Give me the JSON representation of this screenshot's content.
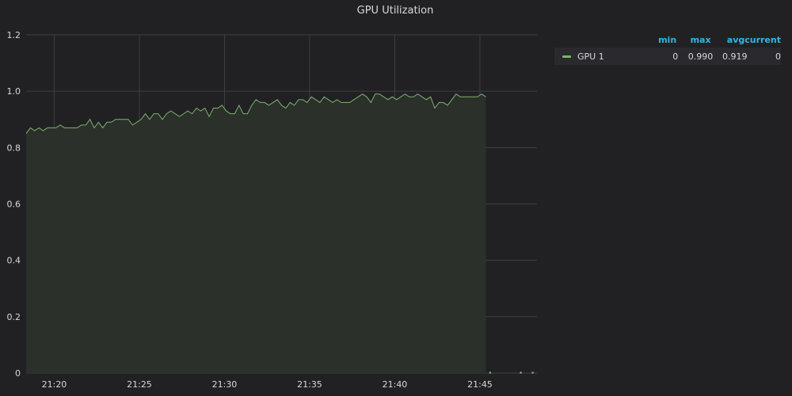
{
  "panel": {
    "title": "GPU Utilization"
  },
  "colors": {
    "series": "#7eb26d",
    "fill": "#2b302b",
    "header": "#33b5e5",
    "grid": "#3f3f43",
    "background": "#212124"
  },
  "legend": {
    "headers": {
      "min": "min",
      "max": "max",
      "avg": "avg",
      "current": "current"
    },
    "rows": [
      {
        "name": "GPU 1",
        "min": "0",
        "max": "0.990",
        "avg": "0.919",
        "current": "0"
      }
    ]
  },
  "chart_data": {
    "type": "area",
    "title": "GPU Utilization",
    "xlabel": "",
    "ylabel": "",
    "x_ticks": [
      "21:20",
      "21:25",
      "21:30",
      "21:35",
      "21:40",
      "21:45"
    ],
    "x_tick_minutes": [
      20,
      25,
      30,
      35,
      40,
      45
    ],
    "xlim_minutes": [
      18.35,
      48.35
    ],
    "y_ticks": [
      "0",
      "0.2",
      "0.4",
      "0.6",
      "0.8",
      "1.0",
      "1.2"
    ],
    "ylim": [
      0,
      1.2
    ],
    "grid": true,
    "legend_position": "right",
    "series": [
      {
        "name": "GPU 1",
        "x_minutes": [
          18.35,
          18.6,
          18.85,
          19.1,
          19.35,
          19.6,
          19.85,
          20.1,
          20.35,
          20.6,
          20.85,
          21.1,
          21.35,
          21.6,
          21.85,
          22.1,
          22.35,
          22.6,
          22.85,
          23.1,
          23.35,
          23.6,
          23.85,
          24.1,
          24.35,
          24.6,
          24.85,
          25.1,
          25.35,
          25.6,
          25.85,
          26.1,
          26.35,
          26.6,
          26.85,
          27.1,
          27.35,
          27.6,
          27.85,
          28.1,
          28.35,
          28.6,
          28.85,
          29.1,
          29.35,
          29.6,
          29.85,
          30.1,
          30.35,
          30.6,
          30.85,
          31.1,
          31.35,
          31.6,
          31.85,
          32.1,
          32.35,
          32.6,
          32.85,
          33.1,
          33.35,
          33.6,
          33.85,
          34.1,
          34.35,
          34.6,
          34.85,
          35.1,
          35.35,
          35.6,
          35.85,
          36.1,
          36.35,
          36.6,
          36.85,
          37.1,
          37.35,
          37.6,
          37.85,
          38.1,
          38.35,
          38.6,
          38.85,
          39.1,
          39.35,
          39.6,
          39.85,
          40.1,
          40.35,
          40.6,
          40.85,
          41.1,
          41.35,
          41.6,
          41.85,
          42.1,
          42.35,
          42.6,
          42.85,
          43.1,
          43.35,
          43.6,
          43.85,
          44.1,
          44.35,
          44.6,
          44.85,
          45.1,
          45.35,
          45.6,
          45.6,
          47.4,
          48.1
        ],
        "values": [
          0.85,
          0.87,
          0.86,
          0.87,
          0.86,
          0.87,
          0.87,
          0.87,
          0.88,
          0.87,
          0.87,
          0.87,
          0.87,
          0.88,
          0.88,
          0.9,
          0.87,
          0.89,
          0.87,
          0.89,
          0.89,
          0.9,
          0.9,
          0.9,
          0.9,
          0.88,
          0.89,
          0.9,
          0.92,
          0.9,
          0.92,
          0.92,
          0.9,
          0.92,
          0.93,
          0.92,
          0.91,
          0.92,
          0.93,
          0.92,
          0.94,
          0.93,
          0.94,
          0.91,
          0.94,
          0.94,
          0.95,
          0.93,
          0.92,
          0.92,
          0.95,
          0.92,
          0.92,
          0.95,
          0.97,
          0.96,
          0.96,
          0.95,
          0.96,
          0.97,
          0.95,
          0.94,
          0.96,
          0.95,
          0.97,
          0.97,
          0.96,
          0.98,
          0.97,
          0.96,
          0.98,
          0.97,
          0.96,
          0.97,
          0.96,
          0.96,
          0.96,
          0.97,
          0.98,
          0.99,
          0.98,
          0.96,
          0.99,
          0.99,
          0.98,
          0.97,
          0.98,
          0.97,
          0.98,
          0.99,
          0.98,
          0.98,
          0.99,
          0.98,
          0.97,
          0.98,
          0.94,
          0.96,
          0.96,
          0.95,
          0.97,
          0.99,
          0.98,
          0.98,
          0.98,
          0.98,
          0.98,
          0.99,
          0.98,
          0,
          0,
          0,
          0
        ]
      }
    ]
  }
}
